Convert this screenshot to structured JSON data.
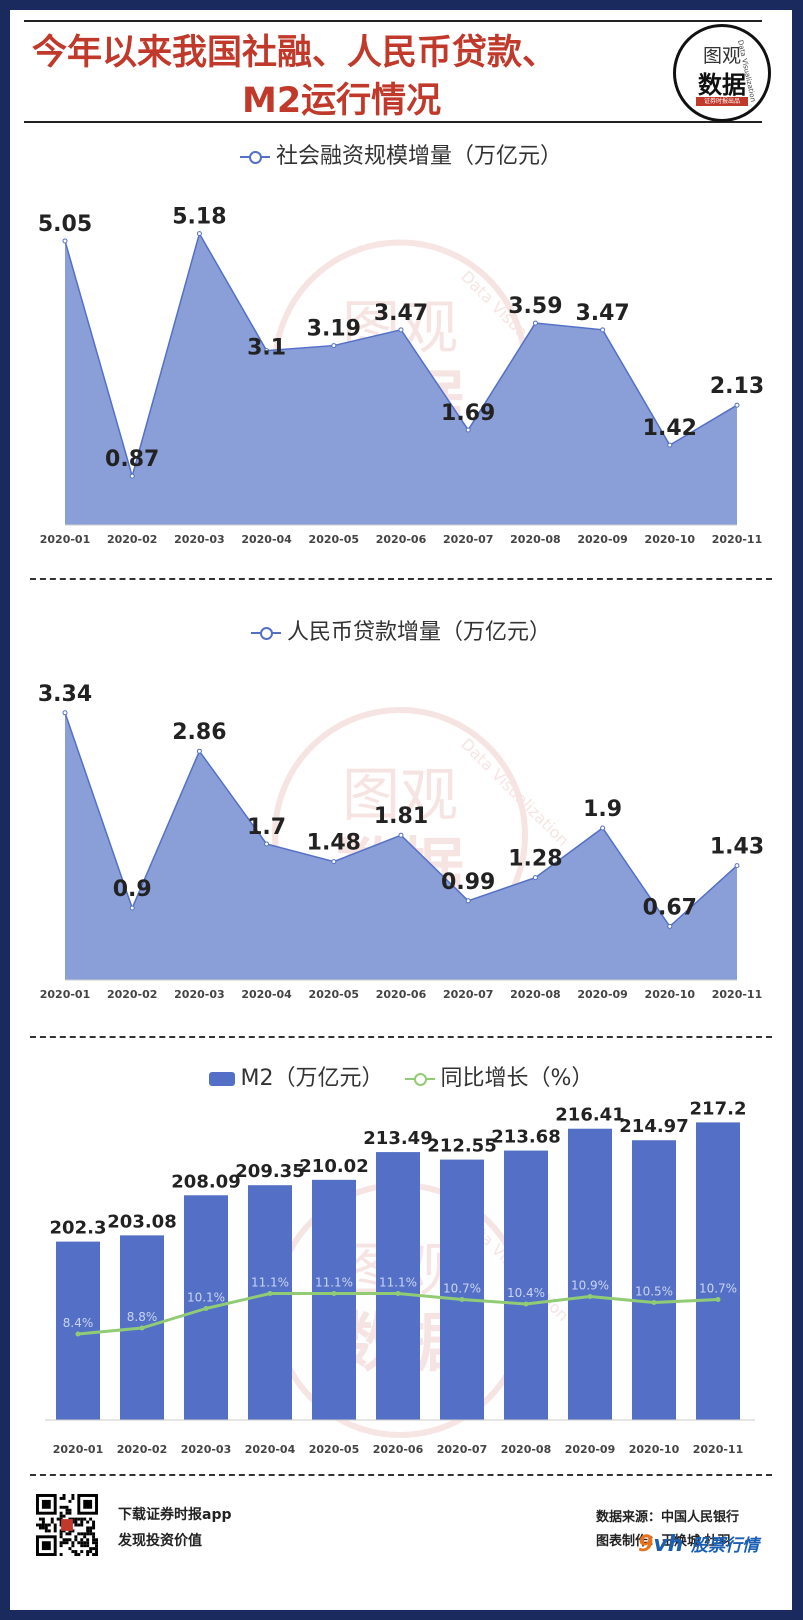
{
  "header": {
    "title_line1": "今年以来我国社融、人民币贷款、",
    "title_line2": "M2运行情况",
    "logo_text_top": "图观",
    "logo_text_bottom": "数据",
    "logo_small_text": "证券时报出品",
    "logo_arc_text": "Data Visualization"
  },
  "watermark": {
    "top": "图观",
    "bottom": "数据",
    "arc": "Data Visualization"
  },
  "footer": {
    "left_line1": "下载证券时报app",
    "left_line2": "发现投资价值",
    "right_line1": "数据来源：中国人民银行",
    "right_line2": "图表制作：王焕城 杜羽",
    "corner_wm_9": "9",
    "corner_wm_vh": "vh",
    "corner_wm_text": "股票行情"
  },
  "colors": {
    "area_fill": "#8a9fd8",
    "area_line": "#5470c6",
    "bar": "#5470c6",
    "growth_line": "#91cc75"
  },
  "chart_data": [
    {
      "type": "area",
      "legend": "社会融资规模增量（万亿元）",
      "categories": [
        "2020-01",
        "2020-02",
        "2020-03",
        "2020-04",
        "2020-05",
        "2020-06",
        "2020-07",
        "2020-08",
        "2020-09",
        "2020-10",
        "2020-11"
      ],
      "series": [
        {
          "name": "社会融资规模增量（万亿元）",
          "values": [
            5.05,
            0.87,
            5.18,
            3.1,
            3.19,
            3.47,
            1.69,
            3.59,
            3.47,
            1.42,
            2.13
          ]
        }
      ]
    },
    {
      "type": "area",
      "legend": "人民币贷款增量（万亿元）",
      "categories": [
        "2020-01",
        "2020-02",
        "2020-03",
        "2020-04",
        "2020-05",
        "2020-06",
        "2020-07",
        "2020-08",
        "2020-09",
        "2020-10",
        "2020-11"
      ],
      "series": [
        {
          "name": "人民币贷款增量（万亿元）",
          "values": [
            3.34,
            0.9,
            2.86,
            1.7,
            1.48,
            1.81,
            0.99,
            1.28,
            1.9,
            0.67,
            1.43
          ]
        }
      ]
    },
    {
      "type": "bar",
      "categories": [
        "2020-01",
        "2020-02",
        "2020-03",
        "2020-04",
        "2020-05",
        "2020-06",
        "2020-07",
        "2020-08",
        "2020-09",
        "2020-10",
        "2020-11"
      ],
      "series": [
        {
          "name": "M2（万亿元）",
          "values": [
            202.3,
            203.08,
            208.09,
            209.35,
            210.02,
            213.49,
            212.55,
            213.68,
            216.41,
            214.97,
            217.2
          ]
        },
        {
          "name": "同比增长（%）",
          "type": "line",
          "values": [
            8.4,
            8.8,
            10.1,
            11.1,
            11.1,
            11.1,
            10.7,
            10.4,
            10.9,
            10.5,
            10.7
          ],
          "labels": [
            "8.4%",
            "8.8%",
            "10.1%",
            "11.1%",
            "11.1%",
            "11.1%",
            "10.7%",
            "10.4%",
            "10.9%",
            "10.5%",
            "10.7%"
          ]
        }
      ]
    }
  ]
}
